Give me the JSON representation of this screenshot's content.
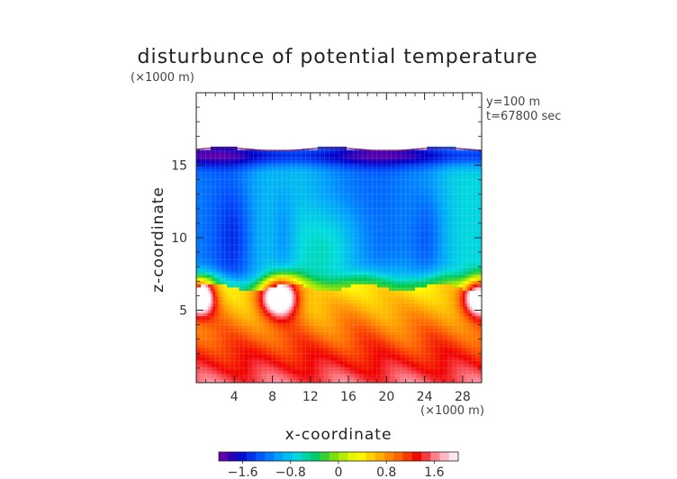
{
  "chart_data": {
    "type": "heatmap",
    "title": "disturbunce of potential temperature",
    "z_unit": "(×1000 m)",
    "x_unit": "(×1000 m)",
    "xlabel": "x-coordinate",
    "ylabel": "z-coordinate",
    "annotations": [
      "y=100 m",
      "t=67800 sec"
    ],
    "xlim": [
      0,
      30
    ],
    "ylim": [
      0,
      20
    ],
    "x_ticks": [
      4,
      8,
      12,
      16,
      20,
      24,
      28
    ],
    "x_tick_labels": [
      "4",
      "8",
      "12",
      "16",
      "20",
      "24",
      "28"
    ],
    "y_ticks": [
      5,
      10,
      15
    ],
    "y_tick_labels": [
      "5",
      "10",
      "15"
    ],
    "colorbar": {
      "range": [
        -2,
        2
      ],
      "ticks": [
        -1.6,
        -0.8,
        0,
        0.8,
        1.6
      ],
      "tick_labels": [
        "−1.6",
        "−0.8",
        "0",
        "0.8",
        "1.6"
      ],
      "colors": [
        "#8000a0",
        "#0000c8",
        "#0050ff",
        "#00a0ff",
        "#00dcdc",
        "#00c850",
        "#a0e600",
        "#ffff00",
        "#ffb400",
        "#ff6400",
        "#f00000",
        "#ff9aa8",
        "#ffffff"
      ]
    },
    "field_description": "domain top near z=16, negative (blue) above ~z=7, positive (yellow to red) below, warm anomalies near z=6 at x=0, 8, 30"
  }
}
